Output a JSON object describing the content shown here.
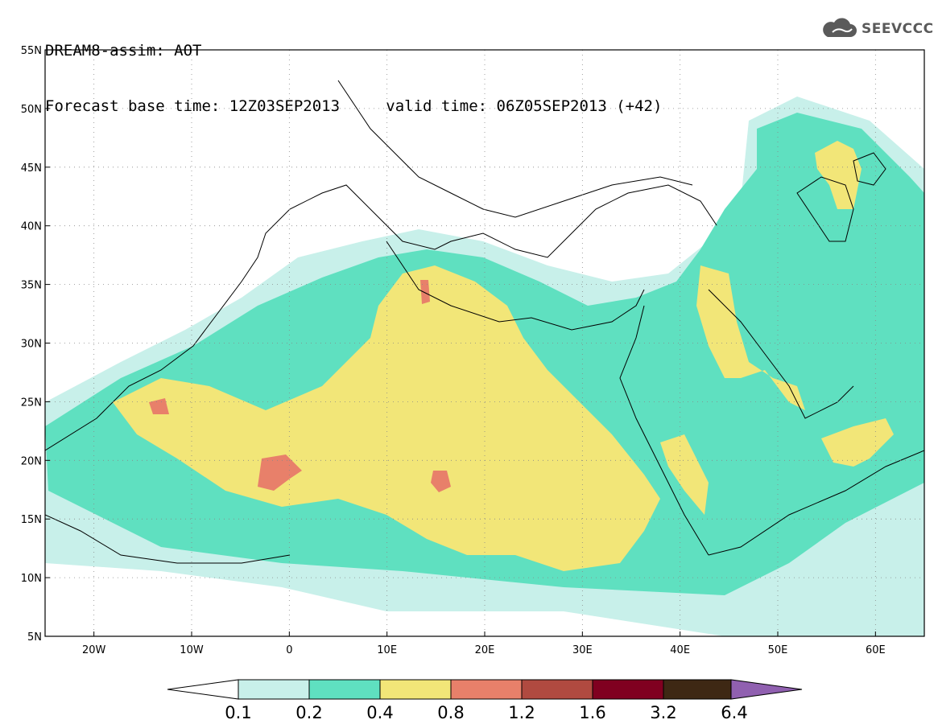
{
  "header": {
    "line1": "DREAM8-assim: AOT",
    "line2_base": "Forecast base time: 12Z03SEP2013",
    "line2_valid": "valid time: 06Z05SEP2013 (+42)"
  },
  "logo": {
    "text": "SEEVCCC",
    "icon": "cloud-icon"
  },
  "map": {
    "lat_labels": [
      "55N",
      "50N",
      "45N",
      "40N",
      "35N",
      "30N",
      "25N",
      "20N",
      "15N",
      "10N",
      "5N"
    ],
    "lon_labels": [
      "20W",
      "10W",
      "0",
      "10E",
      "20E",
      "30E",
      "40E",
      "50E",
      "60E"
    ],
    "lon_range": [
      -25,
      65
    ],
    "lat_range": [
      5,
      55
    ]
  },
  "colors": {
    "c01": "#c8f0ea",
    "c02": "#5fe0c0",
    "c04": "#f2e678",
    "c08": "#e8806a",
    "c12": "#b04a40",
    "c16": "#800020",
    "c32": "#3e2814",
    "c64": "#9060b0",
    "coast": "#000000"
  },
  "colorbar": {
    "labels": [
      "0.1",
      "0.2",
      "0.4",
      "0.8",
      "1.2",
      "1.6",
      "3.2",
      "6.4"
    ]
  }
}
